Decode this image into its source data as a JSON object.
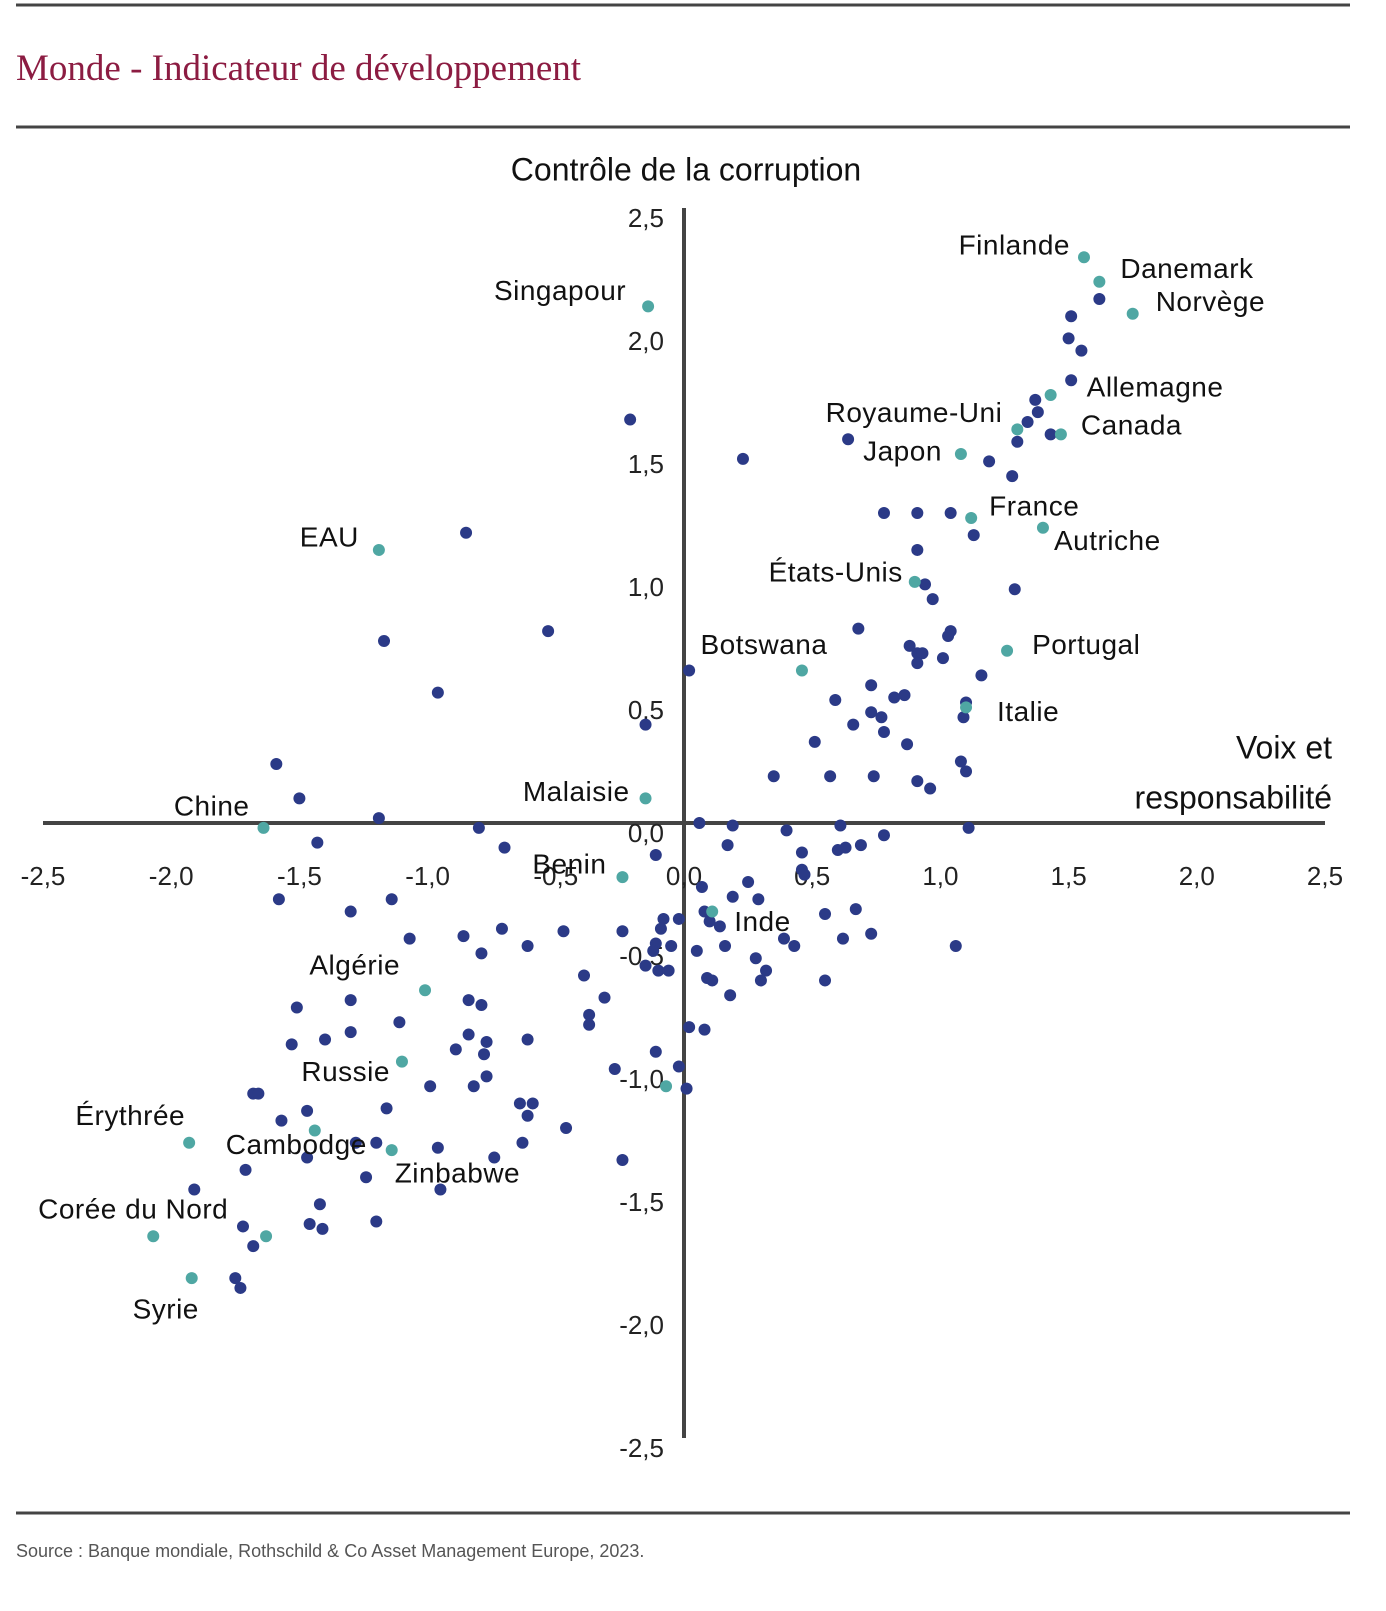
{
  "chart_data": {
    "type": "scatter",
    "title": "Monde - Indicateur de développement",
    "y_label": "Contrôle de la corruption",
    "x_label": [
      "Voix et",
      "responsabilité"
    ],
    "source": "Source : Banque mondiale,  Rothschild & Co Asset Management Europe, 2023.",
    "xlim": [
      -2.5,
      2.5
    ],
    "ylim": [
      -2.5,
      2.5
    ],
    "xticks": [
      {
        "value": -2.5,
        "label": "-2,5"
      },
      {
        "value": -2,
        "label": "-2,0"
      },
      {
        "value": -1.5,
        "label": "-1,5"
      },
      {
        "value": -1,
        "label": "-1,0"
      },
      {
        "value": -0.5,
        "label": "-0,5"
      },
      {
        "value": 0,
        "label": "0,0"
      },
      {
        "value": 0.5,
        "label": "0,5"
      },
      {
        "value": 1,
        "label": "1,0"
      },
      {
        "value": 1.5,
        "label": "1,5"
      },
      {
        "value": 2,
        "label": "2,0"
      },
      {
        "value": 2.5,
        "label": "2,5"
      }
    ],
    "yticks": [
      {
        "value": -2.5,
        "label": "-2,5"
      },
      {
        "value": -2,
        "label": "-2,0"
      },
      {
        "value": -1.5,
        "label": "-1,5"
      },
      {
        "value": -1,
        "label": "-1,0"
      },
      {
        "value": -0.5,
        "label": "-0,5"
      },
      {
        "value": 0,
        "label": "0,0"
      },
      {
        "value": 0.5,
        "label": "0,5"
      },
      {
        "value": 1,
        "label": "1,0"
      },
      {
        "value": 1.5,
        "label": "1,5"
      },
      {
        "value": 2,
        "label": "2,0"
      },
      {
        "value": 2.5,
        "label": "2,5"
      }
    ],
    "series": [
      {
        "color": "#2b3a87",
        "x": [
          1.51,
          1.62,
          1.5,
          1.55,
          1.51,
          1.37,
          1.38,
          1.34,
          1.3,
          1.43,
          1.19,
          1.28,
          0.64,
          0.23,
          -0.21,
          0.78,
          0.91,
          1.04,
          0.91,
          1.13,
          0.94,
          0.97,
          1.29,
          -0.85,
          -0.53,
          -1.17,
          -0.96,
          0.68,
          0.88,
          1.04,
          1.03,
          0.91,
          0.93,
          0.91,
          1.01,
          1.16,
          0.73,
          0.82,
          0.86,
          0.59,
          1.1,
          1.09,
          0.73,
          0.77,
          0.66,
          0.78,
          0.51,
          0.87,
          1.08,
          1.1,
          0.35,
          0.57,
          0.74,
          0.91,
          0.96,
          0.02,
          -0.15,
          -1.59,
          -1.5,
          -1.19,
          -1.43,
          -0.8,
          -0.7,
          -0.11,
          0.06,
          0.19,
          0.4,
          0.61,
          0.78,
          1.11,
          0.17,
          0.46,
          0.69,
          0.6,
          0.63,
          0.46,
          0.47,
          0.25,
          0.19,
          0.29,
          0.07,
          0.08,
          0.1,
          0.14,
          0.55,
          0.67,
          0.73,
          -0.08,
          -0.02,
          -0.09,
          -0.24,
          -0.11,
          -0.05,
          -0.12,
          -0.15,
          -0.1,
          -0.06,
          0.05,
          0.16,
          0.39,
          0.43,
          0.28,
          0.32,
          0.3,
          0.09,
          0.11,
          0.18,
          0.55,
          0.62,
          1.06,
          -1.58,
          -1.3,
          -1.14,
          -1.07,
          -0.86,
          -0.79,
          -0.71,
          -0.61,
          -0.47,
          -0.39,
          -0.31,
          -0.37,
          -0.37,
          -1.3,
          -1.51,
          -0.84,
          -0.79,
          -1.11,
          -1.3,
          -1.4,
          -1.53,
          -0.84,
          -0.77,
          -0.78,
          -0.89,
          -0.61,
          -0.27,
          -0.11,
          0.02,
          0.08,
          -0.02,
          0.01,
          -0.77,
          -0.99,
          -0.82,
          -0.64,
          -0.59,
          -0.61,
          -1.16,
          -1.68,
          -1.66,
          -1.57,
          -1.47,
          -0.46,
          -0.24,
          -0.63,
          -0.96,
          -1.2,
          -1.28,
          -1.47,
          -1.71,
          -1.24,
          -0.74,
          -0.95,
          -1.91,
          -1.42,
          -1.72,
          -1.46,
          -1.41,
          -1.2,
          -1.68,
          -1.75,
          -1.73
        ],
        "y": [
          2.06,
          2.13,
          1.97,
          1.92,
          1.8,
          1.72,
          1.67,
          1.63,
          1.55,
          1.58,
          1.47,
          1.41,
          1.56,
          1.48,
          1.64,
          1.26,
          1.26,
          1.26,
          1.11,
          1.17,
          0.97,
          0.91,
          0.95,
          1.18,
          0.78,
          0.74,
          0.53,
          0.79,
          0.72,
          0.78,
          0.76,
          0.69,
          0.69,
          0.65,
          0.67,
          0.6,
          0.56,
          0.51,
          0.52,
          0.5,
          0.49,
          0.43,
          0.45,
          0.43,
          0.4,
          0.37,
          0.33,
          0.32,
          0.25,
          0.21,
          0.19,
          0.19,
          0.19,
          0.17,
          0.14,
          0.62,
          0.4,
          0.24,
          0.1,
          0.02,
          -0.08,
          -0.02,
          -0.1,
          -0.13,
          0.0,
          -0.01,
          -0.03,
          -0.01,
          -0.05,
          -0.02,
          -0.09,
          -0.12,
          -0.09,
          -0.11,
          -0.1,
          -0.19,
          -0.21,
          -0.24,
          -0.3,
          -0.31,
          -0.26,
          -0.36,
          -0.4,
          -0.42,
          -0.37,
          -0.35,
          -0.45,
          -0.39,
          -0.39,
          -0.43,
          -0.44,
          -0.49,
          -0.5,
          -0.52,
          -0.58,
          -0.6,
          -0.6,
          -0.52,
          -0.5,
          -0.47,
          -0.5,
          -0.55,
          -0.6,
          -0.64,
          -0.63,
          -0.64,
          -0.7,
          -0.64,
          -0.47,
          -0.5,
          -0.31,
          -0.36,
          -0.31,
          -0.47,
          -0.46,
          -0.53,
          -0.43,
          -0.5,
          -0.44,
          -0.62,
          -0.71,
          -0.78,
          -0.82,
          -0.72,
          -0.75,
          -0.72,
          -0.74,
          -0.81,
          -0.85,
          -0.88,
          -0.9,
          -0.86,
          -0.89,
          -0.94,
          -0.92,
          -0.88,
          -1.0,
          -0.93,
          -0.83,
          -0.84,
          -0.99,
          -1.08,
          -1.03,
          -1.07,
          -1.07,
          -1.14,
          -1.14,
          -1.19,
          -1.16,
          -1.1,
          -1.1,
          -1.21,
          -1.17,
          -1.24,
          -1.37,
          -1.3,
          -1.32,
          -1.3,
          -1.3,
          -1.36,
          -1.41,
          -1.44,
          -1.36,
          -1.49,
          -1.49,
          -1.55,
          -1.64,
          -1.63,
          -1.65,
          -1.62,
          -1.72,
          -1.85,
          -1.89
        ]
      },
      {
        "color": "#4fa7a3",
        "labels": [
          "Finlande",
          "Danemark",
          "Norvège",
          "Singapour",
          "Allemagne",
          "Royaume-Uni",
          "Canada",
          "Japon",
          "France",
          "Autriche",
          "EAU",
          "États-Unis",
          "Portugal",
          "Botswana",
          "Italie",
          "Malaisie",
          "Chine",
          "Benin",
          "Inde",
          "Algérie",
          "Russie",
          "Érythrée",
          "Cambodge",
          "Zinbabwe",
          "Corée du Nord",
          "Syrie",
          null,
          null
        ],
        "x": [
          1.56,
          1.62,
          1.75,
          -0.14,
          1.43,
          1.3,
          1.47,
          1.08,
          1.12,
          1.4,
          -1.19,
          0.9,
          1.26,
          0.46,
          1.1,
          -0.15,
          -1.64,
          -0.24,
          0.11,
          -1.01,
          -1.1,
          -1.93,
          -1.44,
          -1.14,
          -2.07,
          -1.92,
          -1.63,
          -0.07
        ],
        "y": [
          2.3,
          2.2,
          2.07,
          2.1,
          1.74,
          1.6,
          1.58,
          1.5,
          1.24,
          1.2,
          1.11,
          0.98,
          0.7,
          0.62,
          0.47,
          0.1,
          -0.02,
          -0.22,
          -0.36,
          -0.68,
          -0.97,
          -1.3,
          -1.25,
          -1.33,
          -1.68,
          -1.85,
          -1.68,
          -1.07
        ]
      }
    ]
  }
}
